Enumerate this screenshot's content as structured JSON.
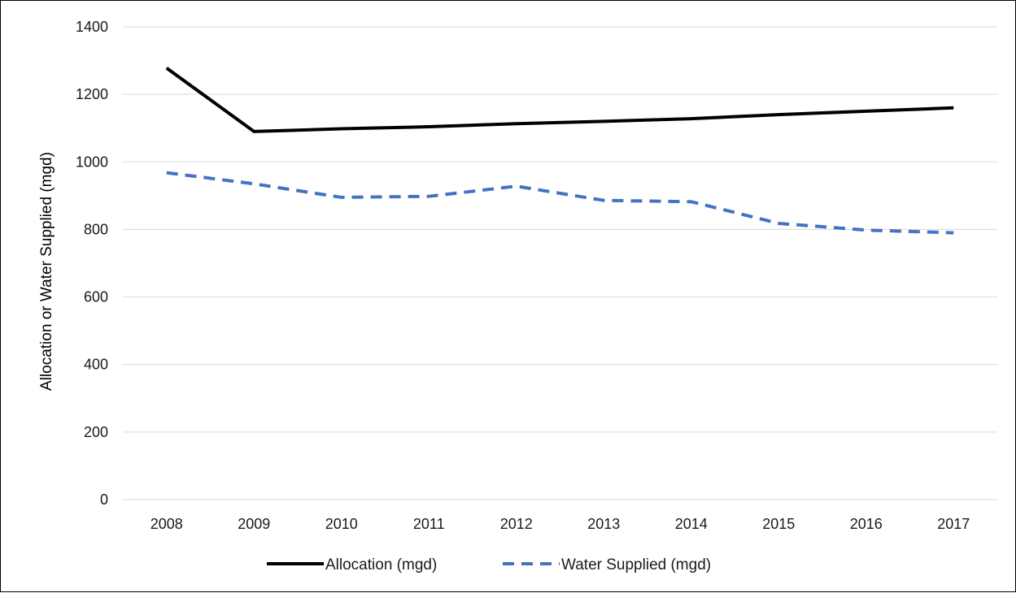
{
  "chart_data": {
    "type": "line",
    "categories": [
      "2008",
      "2009",
      "2010",
      "2011",
      "2012",
      "2013",
      "2014",
      "2015",
      "2016",
      "2017"
    ],
    "series": [
      {
        "name": "Allocation (mgd)",
        "values": [
          1278,
          1090,
          1098,
          1104,
          1113,
          1120,
          1128,
          1140,
          1150,
          1160
        ],
        "color": "#000000",
        "style": "solid"
      },
      {
        "name": "Water Supplied (mgd)",
        "values": [
          968,
          935,
          895,
          898,
          928,
          886,
          882,
          818,
          798,
          790
        ],
        "color": "#4472C4",
        "style": "dashed"
      }
    ],
    "ylabel": "Allocation or Water Supplied (mgd)",
    "xlabel": "",
    "title": "",
    "ylim": [
      0,
      1400
    ],
    "yticks": [
      0,
      200,
      400,
      600,
      800,
      1000,
      1200,
      1400
    ],
    "grid": "horizontal",
    "legend_position": "bottom",
    "colors": {
      "gridline": "#d9d9d9",
      "axis": "#d9d9d9",
      "text": "#1a1a1a"
    }
  }
}
